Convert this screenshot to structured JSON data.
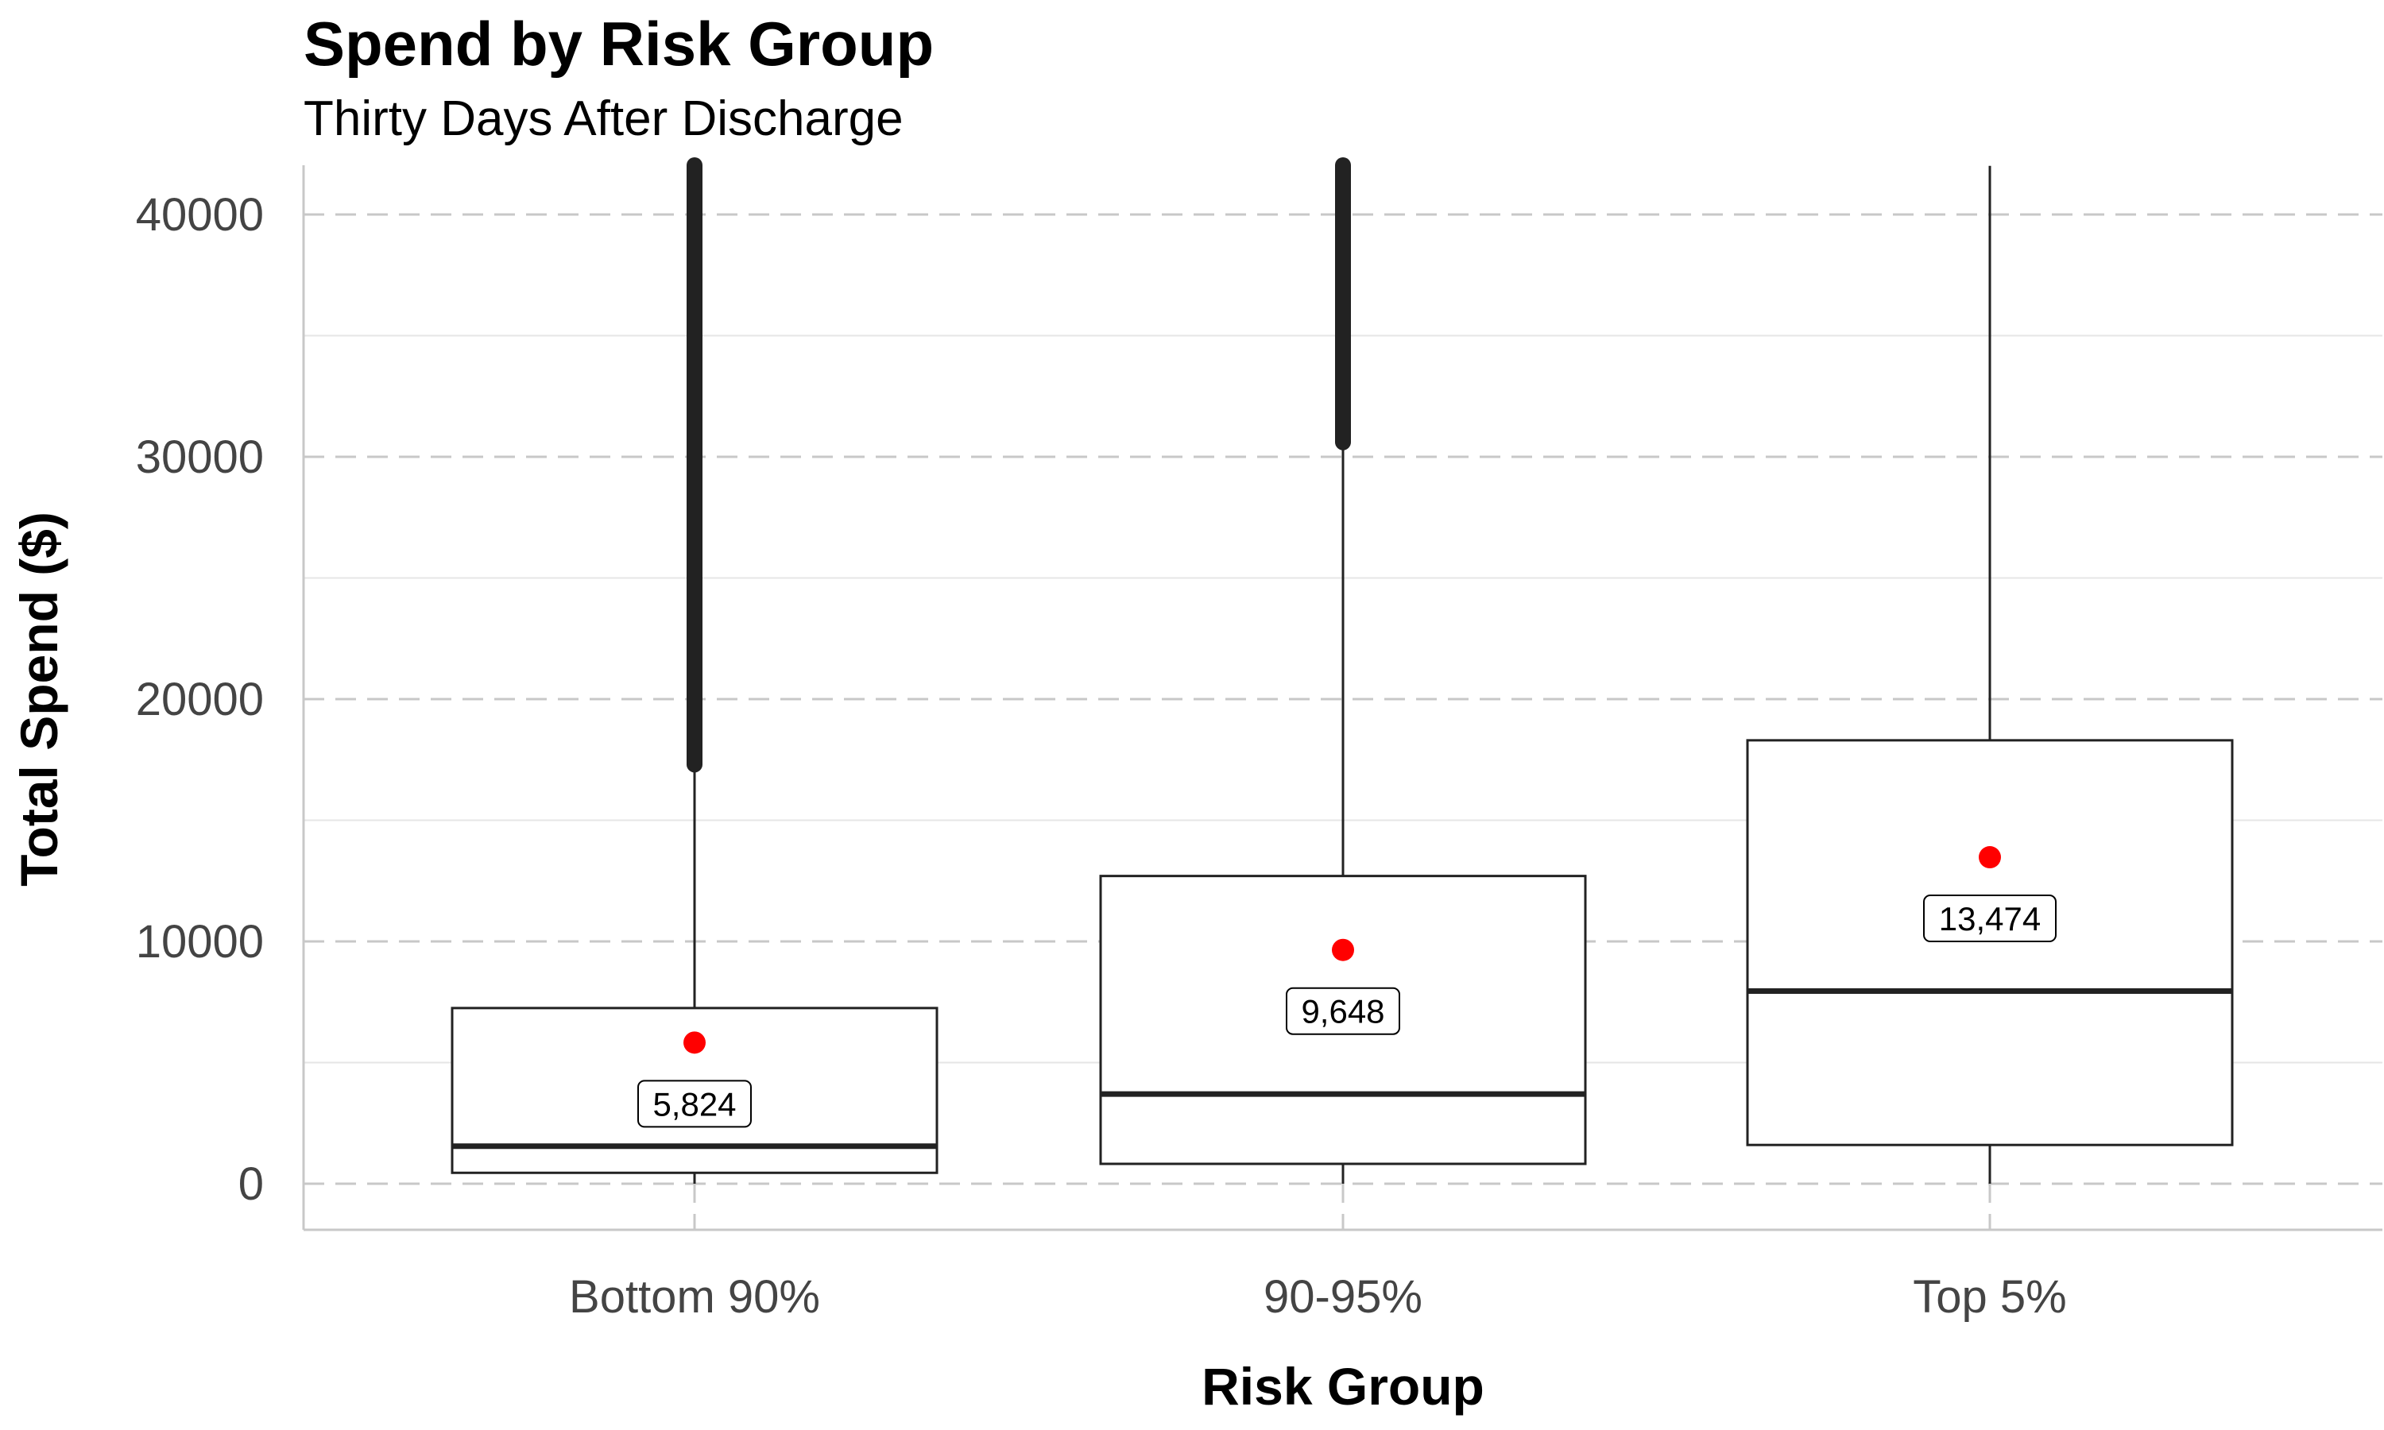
{
  "chart_data": {
    "type": "box",
    "title": "Spend by Risk Group",
    "subtitle": "Thirty Days After Discharge",
    "xlabel": "Risk Group",
    "ylabel": "Total Spend ($)",
    "ylim": [
      -1900,
      42000
    ],
    "yticks": [
      0,
      10000,
      20000,
      30000,
      40000
    ],
    "grid": true,
    "categories": [
      "Bottom 90%",
      "90-95%",
      "Top 5%"
    ],
    "boxes": [
      {
        "category": "Bottom 90%",
        "q1": 450,
        "median": 1550,
        "q3": 7250,
        "whisker_low": 0,
        "whisker_high": 17300,
        "outliers_from": 17300,
        "outliers_to": 42000,
        "mean": 5824,
        "mean_label": "5,824"
      },
      {
        "category": "90-95%",
        "q1": 820,
        "median": 3700,
        "q3": 12700,
        "whisker_low": 0,
        "whisker_high": 30600,
        "outliers_from": 30600,
        "outliers_to": 42000,
        "mean": 9648,
        "mean_label": "9,648"
      },
      {
        "category": "Top 5%",
        "q1": 1600,
        "median": 7950,
        "q3": 18300,
        "whisker_low": 0,
        "whisker_high": 42000,
        "outliers_from": null,
        "outliers_to": null,
        "mean": 13474,
        "mean_label": "13,474"
      }
    ],
    "colors": {
      "mean_point": "#ff0000",
      "box_stroke": "#222222",
      "grid_major": "#c8c8c8",
      "grid_minor": "#e6e6e6"
    }
  }
}
